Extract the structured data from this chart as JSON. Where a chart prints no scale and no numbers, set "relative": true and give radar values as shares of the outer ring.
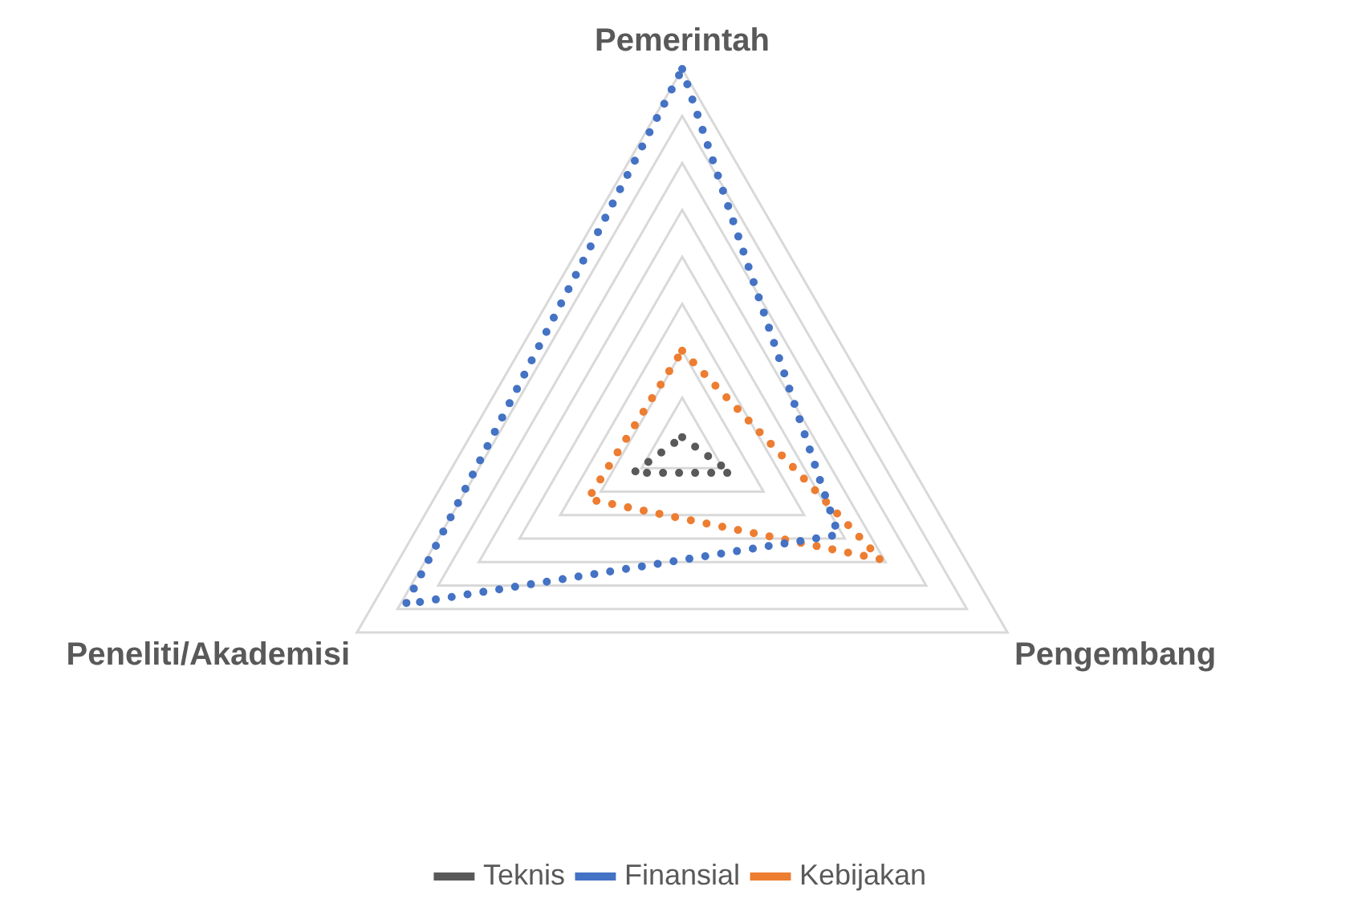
{
  "chart_data": {
    "type": "radar",
    "relative": true,
    "categories": [
      "Pemerintah",
      "Pengembang",
      "Peneliti/Akademisi"
    ],
    "series": [
      {
        "name": "Teknis",
        "color": "#595959",
        "values": [
          0.02,
          0.15,
          0.15
        ]
      },
      {
        "name": "Finansial",
        "color": "#4472c4",
        "values": [
          1,
          0.48,
          0.85
        ]
      },
      {
        "name": "Kebijakan",
        "color": "#ed7d31",
        "values": [
          0.25,
          0.61,
          0.29
        ]
      }
    ],
    "grid": true,
    "legend": "bottom",
    "marker": "none",
    "line_style": "dotted"
  }
}
